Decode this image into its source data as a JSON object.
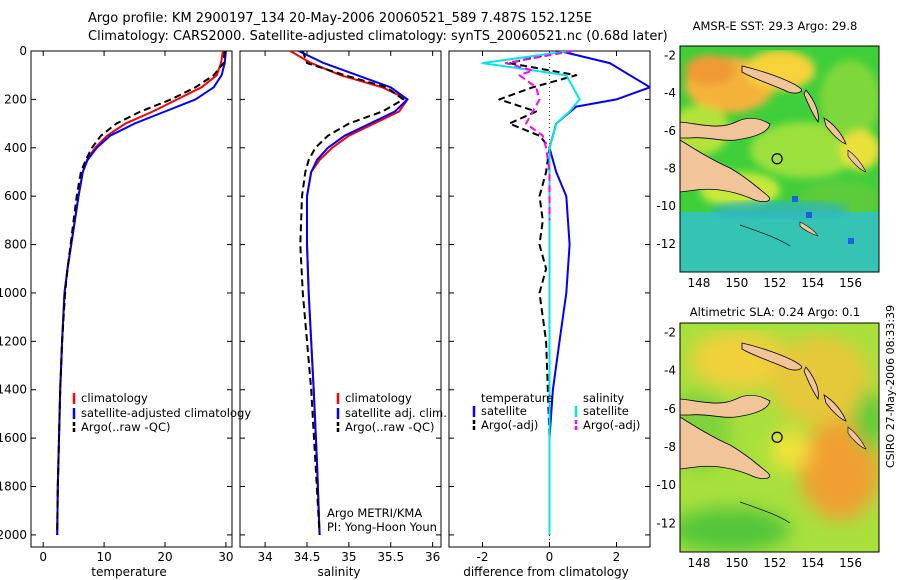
{
  "header": {
    "line1": "Argo profile: KM 2900197_134 20-May-2006 20060521_589 7.487S 152.125E",
    "line2": "Climatology: CARS2000. Satellite-adjusted climatology: synTS_20060521.nc (0.68d later)"
  },
  "footer_vertical": "CSIRO 27-May-2006 08:33:39",
  "credits": {
    "line1": "Argo METRI/KMA",
    "line2": "PI: Yong-Hoon Youn"
  },
  "colors": {
    "climatology": "#ff0000",
    "satellite": "#0000ff",
    "argo": "#000000",
    "sat_salinity": "#00e5ee",
    "argo_salinity": "#ff00ff"
  },
  "chart_data": [
    {
      "type": "line",
      "id": "temperature",
      "xlabel": "temperature",
      "ylabel": "",
      "xlim": [
        -2,
        31
      ],
      "ylim": [
        2050,
        0
      ],
      "xticks": [
        0,
        10,
        20,
        30
      ],
      "yticks": [
        0,
        200,
        400,
        600,
        800,
        1000,
        1200,
        1400,
        1600,
        1800,
        2000
      ],
      "legend": [
        "climatology",
        "satellite-adjusted climatology",
        "Argo(..raw -QC)"
      ],
      "legend_position": "bottom-right",
      "series": [
        {
          "name": "climatology",
          "color": "#ff0000",
          "style": "solid",
          "x": [
            29.5,
            29.2,
            28.5,
            26,
            22,
            18,
            13.5,
            10.5,
            8.5,
            7.2,
            6.5,
            5.8,
            5.2,
            4.6,
            4.0,
            3.5,
            3.1,
            2.8,
            2.6,
            2.4,
            2.3
          ],
          "y": [
            0,
            50,
            100,
            150,
            200,
            250,
            300,
            350,
            400,
            450,
            500,
            600,
            700,
            800,
            900,
            1000,
            1200,
            1400,
            1600,
            1800,
            2000
          ]
        },
        {
          "name": "satellite-adjusted climatology",
          "color": "#0000ff",
          "style": "solid",
          "x": [
            30,
            29.8,
            29.3,
            28,
            25,
            20,
            15,
            11,
            8.8,
            7.3,
            6.5,
            5.8,
            5.2,
            4.6,
            4.0,
            3.5,
            3.1,
            2.8,
            2.6,
            2.4,
            2.3
          ],
          "y": [
            0,
            50,
            100,
            150,
            200,
            250,
            300,
            350,
            400,
            450,
            500,
            600,
            700,
            800,
            900,
            1000,
            1200,
            1400,
            1600,
            1800,
            2000
          ]
        },
        {
          "name": "Argo(..raw -QC)",
          "color": "#000000",
          "style": "dashed",
          "x": [
            29.8,
            29.6,
            28,
            25,
            21,
            16,
            12,
            9.5,
            8.0,
            7.0,
            6.2,
            5.5,
            5.0,
            4.5,
            4.0,
            3.6,
            3.1,
            2.8,
            2.6,
            2.4,
            2.3
          ],
          "y": [
            0,
            50,
            100,
            150,
            200,
            250,
            300,
            350,
            400,
            450,
            500,
            600,
            700,
            800,
            900,
            1000,
            1200,
            1400,
            1600,
            1800,
            2000
          ]
        }
      ]
    },
    {
      "type": "line",
      "id": "salinity",
      "xlabel": "salinity",
      "ylabel": "",
      "xlim": [
        33.7,
        36.1
      ],
      "ylim": [
        2050,
        0
      ],
      "xticks": [
        34,
        34.5,
        35,
        35.5,
        36
      ],
      "legend": [
        "climatology",
        "satellite adj. clim.",
        "Argo(..raw -QC)"
      ],
      "legend_position": "bottom-right",
      "series": [
        {
          "name": "climatology",
          "color": "#ff0000",
          "style": "solid",
          "x": [
            34.3,
            34.55,
            34.9,
            35.4,
            35.7,
            35.6,
            35.3,
            35.0,
            34.8,
            34.65,
            34.55,
            34.5,
            34.5,
            34.52,
            34.55,
            34.58,
            34.62,
            34.65
          ],
          "y": [
            0,
            50,
            100,
            150,
            200,
            250,
            300,
            350,
            400,
            450,
            500,
            600,
            800,
            1000,
            1200,
            1400,
            1700,
            2000
          ]
        },
        {
          "name": "satellite adj. clim.",
          "color": "#0000ff",
          "style": "solid",
          "x": [
            34.4,
            34.7,
            35.1,
            35.5,
            35.7,
            35.55,
            35.25,
            34.95,
            34.75,
            34.62,
            34.55,
            34.5,
            34.5,
            34.52,
            34.55,
            34.58,
            34.62,
            34.65
          ],
          "y": [
            0,
            50,
            100,
            150,
            200,
            250,
            300,
            350,
            400,
            450,
            500,
            600,
            800,
            1000,
            1200,
            1400,
            1700,
            2000
          ]
        },
        {
          "name": "Argo(..raw -QC)",
          "color": "#000000",
          "style": "dashed",
          "x": [
            34.45,
            34.5,
            34.95,
            35.45,
            35.65,
            35.4,
            35.0,
            34.75,
            34.6,
            34.52,
            34.48,
            34.44,
            34.42,
            34.45,
            34.5,
            34.55,
            34.6,
            34.65
          ],
          "y": [
            0,
            50,
            100,
            150,
            200,
            250,
            300,
            350,
            400,
            450,
            500,
            600,
            800,
            1000,
            1200,
            1400,
            1700,
            2000
          ]
        }
      ]
    },
    {
      "type": "line",
      "id": "difference",
      "xlabel": "difference from climatology",
      "ylabel": "",
      "xlim": [
        -3,
        3
      ],
      "ylim": [
        2050,
        0
      ],
      "xticks": [
        -2,
        0,
        2
      ],
      "legend": [
        "temperature",
        "satellite",
        "Argo(-adj)",
        "salinity",
        "satellite",
        "Argo(-adj)"
      ],
      "legend_position": "bottom",
      "series": [
        {
          "name": "satellite",
          "color": "#0000ff",
          "style": "solid",
          "x": [
            0.3,
            1.8,
            3.0,
            2.0,
            0.8,
            0.2,
            0,
            0.2,
            0.5,
            0.6,
            0.5,
            0.3,
            0.1,
            0,
            0,
            0,
            0
          ],
          "y": [
            0,
            50,
            150,
            200,
            230,
            300,
            400,
            500,
            600,
            800,
            1000,
            1200,
            1400,
            1600,
            1700,
            1800,
            2000
          ]
        },
        {
          "name": "Argo(-adj)",
          "color": "#000000",
          "style": "dashed",
          "x": [
            0.4,
            -1.2,
            0.8,
            -0.5,
            -1.5,
            -0.4,
            -1.2,
            -0.3,
            0,
            -0.1,
            -0.3,
            -0.2,
            -0.3,
            -0.1,
            -0.3,
            -0.1,
            0,
            0
          ],
          "y": [
            0,
            50,
            100,
            150,
            200,
            250,
            300,
            350,
            400,
            500,
            600,
            700,
            800,
            900,
            1000,
            1200,
            1600,
            2000
          ]
        },
        {
          "name": "satellite",
          "color": "#00e5ee",
          "style": "solid",
          "x": [
            0.6,
            -2.0,
            0.5,
            0.7,
            0.9,
            0.6,
            0.2,
            0,
            0,
            0,
            0,
            0,
            0,
            0,
            0,
            0
          ],
          "y": [
            0,
            50,
            100,
            150,
            200,
            250,
            300,
            400,
            500,
            600,
            800,
            1000,
            1200,
            1400,
            1700,
            2000
          ]
        },
        {
          "name": "Argo(-adj)",
          "color": "#ff00ff",
          "style": "dashed",
          "x": [
            0.7,
            -1.3,
            -0.5,
            -0.9,
            -0.4,
            -0.3,
            -0.7,
            -0.2,
            -0.1,
            0,
            0,
            0
          ],
          "y": [
            0,
            50,
            80,
            100,
            150,
            200,
            300,
            350,
            400,
            500,
            600,
            700
          ]
        }
      ]
    },
    {
      "type": "heatmap",
      "id": "sst-map",
      "title": "AMSR-E SST: 29.3 Argo: 29.8",
      "xlim": [
        147,
        157.5
      ],
      "ylim": [
        -13.5,
        -1.5
      ],
      "xticks": [
        148,
        150,
        152,
        154,
        156
      ],
      "yticks": [
        -2,
        -4,
        -6,
        -8,
        -10,
        -12
      ],
      "marker": {
        "lon": 152.125,
        "lat": -7.487
      }
    },
    {
      "type": "heatmap",
      "id": "sla-map",
      "title": "Altimetric SLA: 0.24 Argo: 0.1",
      "xlim": [
        147,
        157.5
      ],
      "ylim": [
        -13.5,
        -1.5
      ],
      "xticks": [
        148,
        150,
        152,
        154,
        156
      ],
      "yticks": [
        -2,
        -4,
        -6,
        -8,
        -10,
        -12
      ],
      "marker": {
        "lon": 152.125,
        "lat": -7.487
      }
    }
  ]
}
